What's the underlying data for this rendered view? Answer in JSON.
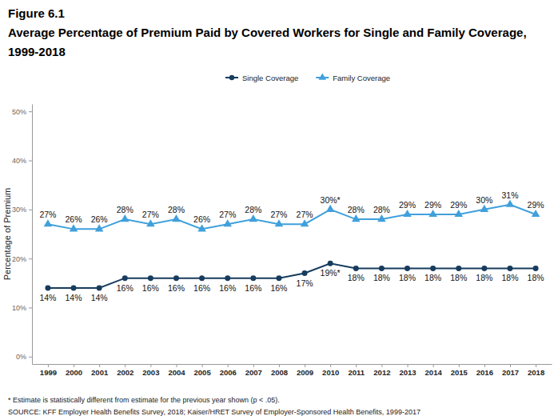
{
  "chart_data": {
    "type": "line",
    "title": "Figure 6.1",
    "subtitle": [
      "Average Percentage of Premium Paid by Covered Workers for Single and Family Coverage,",
      "1999-2018"
    ],
    "ylabel": "Percentage of Premium",
    "footnote": "* Estimate is statistically different from estimate for the previous year shown (p < .05).",
    "source": "SOURCE: KFF Employer Health Benefits Survey, 2018; Kaiser/HRET Survey of Employer-Sponsored Health Benefits, 1999-2017",
    "categories": [
      "1999",
      "2000",
      "2001",
      "2002",
      "2003",
      "2004",
      "2005",
      "2006",
      "2007",
      "2008",
      "2009",
      "2010",
      "2011",
      "2012",
      "2013",
      "2014",
      "2015",
      "2016",
      "2017",
      "2018"
    ],
    "series": [
      {
        "name": "Single Coverage",
        "color": "#173c5e",
        "marker": "circle",
        "values": [
          14,
          14,
          14,
          16,
          16,
          16,
          16,
          16,
          16,
          16,
          17,
          19,
          18,
          18,
          18,
          18,
          18,
          18,
          18,
          18
        ],
        "value_labels": [
          "14%",
          "14%",
          "14%",
          "16%",
          "16%",
          "16%",
          "16%",
          "16%",
          "16%",
          "16%",
          "17%",
          "19%*",
          "18%",
          "18%",
          "18%",
          "18%",
          "18%",
          "18%",
          "18%",
          "18%"
        ]
      },
      {
        "name": "Family Coverage",
        "color": "#40a0dc",
        "marker": "triangle",
        "values": [
          27,
          26,
          26,
          28,
          27,
          28,
          26,
          27,
          28,
          27,
          27,
          30,
          28,
          28,
          29,
          29,
          29,
          30,
          31,
          29
        ],
        "value_labels": [
          "27%",
          "26%",
          "26%",
          "28%",
          "27%",
          "28%",
          "26%",
          "27%",
          "28%",
          "27%",
          "27%",
          "30%*",
          "28%",
          "28%",
          "29%",
          "29%",
          "29%",
          "30%",
          "31%",
          "29%"
        ]
      }
    ],
    "ylim": [
      -1.5,
      51.5
    ],
    "yticks": [
      {
        "value": 0,
        "label": "0%"
      },
      {
        "value": 10,
        "label": "10%"
      },
      {
        "value": 20,
        "label": "20%"
      },
      {
        "value": 30,
        "label": "30%"
      },
      {
        "value": 40,
        "label": "40%"
      },
      {
        "value": 50,
        "label": "50%"
      }
    ],
    "grid": false,
    "legend": "top",
    "data_labels": true
  }
}
